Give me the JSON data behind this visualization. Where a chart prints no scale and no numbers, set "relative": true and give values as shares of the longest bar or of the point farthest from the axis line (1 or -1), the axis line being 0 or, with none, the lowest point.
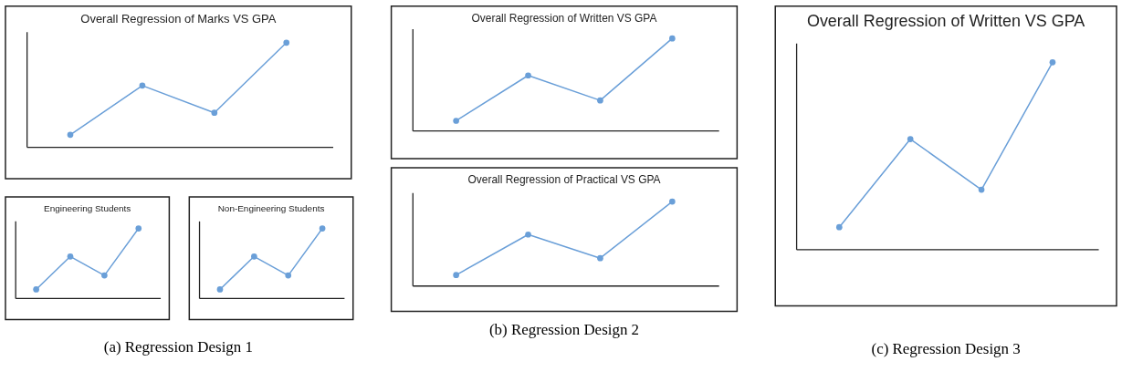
{
  "chart_data": [
    {
      "type": "line",
      "title": "Overall Regression of Marks VS GPA",
      "relative": true,
      "marker": "circle",
      "categories": [
        null,
        null,
        null,
        null
      ],
      "series": [
        {
          "color": "#6a9fd8",
          "values": [
            0.12,
            0.59,
            0.33,
            1
          ]
        }
      ],
      "annotations": [
        "(a) Regression Design 1"
      ]
    },
    {
      "type": "line",
      "title": "Engineering Students",
      "relative": true,
      "marker": "circle",
      "categories": [
        null,
        null,
        null,
        null
      ],
      "series": [
        {
          "color": "#6a9fd8",
          "values": [
            0.13,
            0.6,
            0.33,
            1
          ]
        }
      ]
    },
    {
      "type": "line",
      "title": "Non-Engineering Students",
      "relative": true,
      "marker": "circle",
      "categories": [
        null,
        null,
        null,
        null
      ],
      "series": [
        {
          "color": "#6a9fd8",
          "values": [
            0.13,
            0.6,
            0.33,
            1
          ]
        }
      ]
    },
    {
      "type": "line",
      "title": "Overall Regression of Written VS GPA",
      "relative": true,
      "marker": "circle",
      "categories": [
        null,
        null,
        null,
        null
      ],
      "series": [
        {
          "color": "#6a9fd8",
          "values": [
            0.11,
            0.6,
            0.33,
            1
          ]
        }
      ]
    },
    {
      "type": "line",
      "title": "Overall Regression of Practical VS GPA",
      "relative": true,
      "marker": "circle",
      "categories": [
        null,
        null,
        null,
        null
      ],
      "series": [
        {
          "color": "#6a9fd8",
          "values": [
            0.13,
            0.61,
            0.33,
            1
          ]
        }
      ],
      "annotations": [
        "(b) Regression Design 2"
      ]
    },
    {
      "type": "line",
      "title": "Overall Regression of Written VS GPA",
      "relative": true,
      "marker": "circle",
      "categories": [
        null,
        null,
        null,
        null
      ],
      "series": [
        {
          "color": "#6a9fd8",
          "values": [
            0.12,
            0.59,
            0.32,
            1
          ]
        }
      ],
      "annotations": [
        "(c) Regression Design 3"
      ]
    }
  ]
}
